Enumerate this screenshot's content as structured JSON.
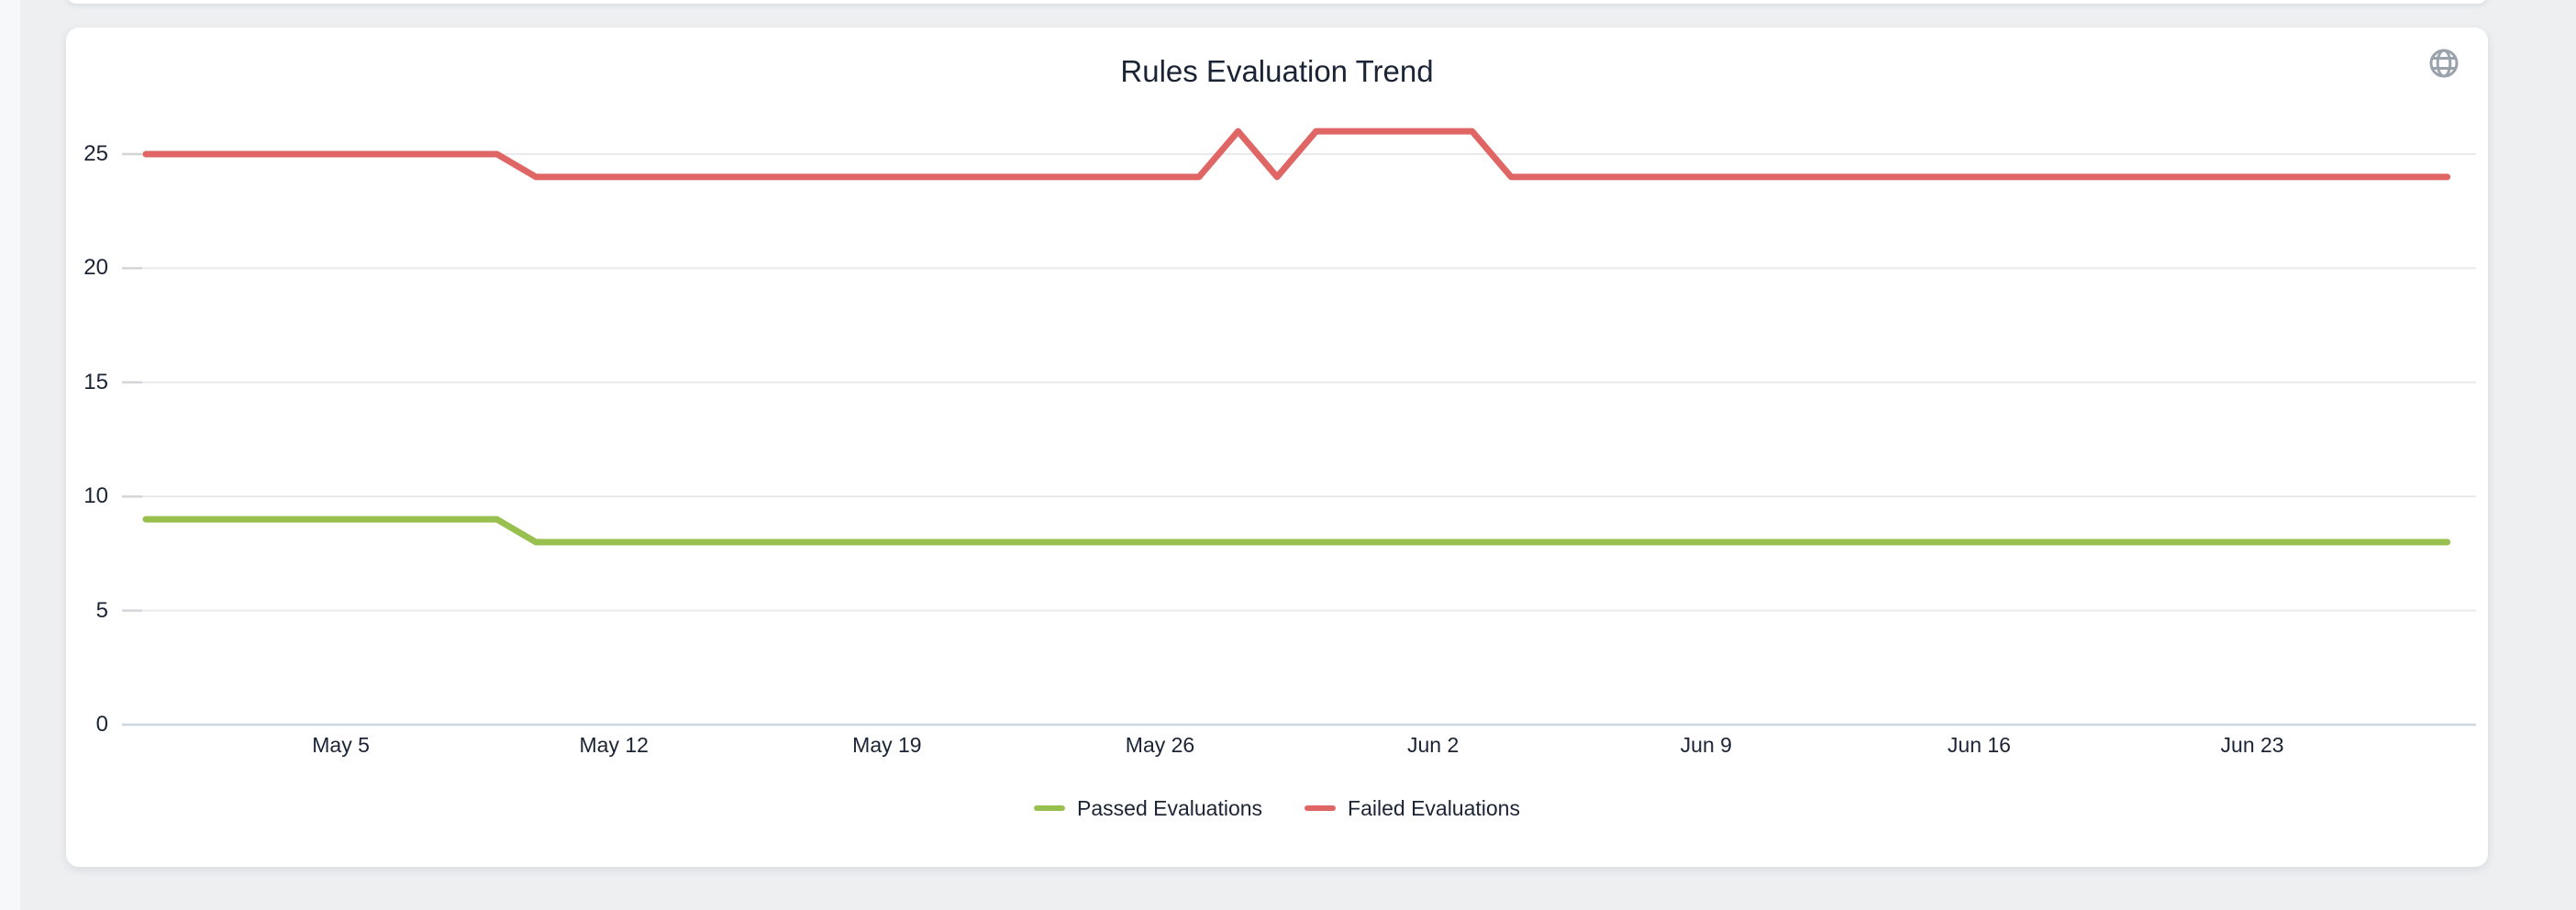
{
  "page": {
    "background_color": "#eeeff1",
    "left_strip_color": "#f6f8fa",
    "card_color": "#ffffff"
  },
  "card": {
    "title": "Rules Evaluation Trend",
    "toolbar": {
      "globe_icon": "globe-icon",
      "icon_color": "#9aa2ac"
    }
  },
  "chart_data": {
    "type": "line",
    "title": "Rules Evaluation Trend",
    "grid": "horizontal-only",
    "legend_position": "bottom",
    "ylim": [
      0,
      27
    ],
    "y_ticks": [
      0,
      5,
      10,
      15,
      20,
      25
    ],
    "x_tick_labels": [
      "May 5",
      "May 12",
      "May 19",
      "May 26",
      "Jun 2",
      "Jun 9",
      "Jun 16",
      "Jun 23"
    ],
    "x_tick_indices": [
      5,
      12,
      19,
      26,
      33,
      40,
      47,
      54
    ],
    "x": [
      "Apr 30",
      "May 1",
      "May 2",
      "May 3",
      "May 4",
      "May 5",
      "May 6",
      "May 7",
      "May 8",
      "May 9",
      "May 10",
      "May 11",
      "May 12",
      "May 13",
      "May 14",
      "May 15",
      "May 16",
      "May 17",
      "May 18",
      "May 19",
      "May 20",
      "May 21",
      "May 22",
      "May 23",
      "May 24",
      "May 25",
      "May 26",
      "May 27",
      "May 28",
      "May 29",
      "May 30",
      "May 31",
      "Jun 1",
      "Jun 2",
      "Jun 3",
      "Jun 4",
      "Jun 5",
      "Jun 6",
      "Jun 7",
      "Jun 8",
      "Jun 9",
      "Jun 10",
      "Jun 11",
      "Jun 12",
      "Jun 13",
      "Jun 14",
      "Jun 15",
      "Jun 16",
      "Jun 17",
      "Jun 18",
      "Jun 19",
      "Jun 20",
      "Jun 21",
      "Jun 22",
      "Jun 23",
      "Jun 24",
      "Jun 25",
      "Jun 26",
      "Jun 27",
      "Jun 28"
    ],
    "series": [
      {
        "name": "Passed Evaluations",
        "color": "#97c04f",
        "values": [
          9,
          9,
          9,
          9,
          9,
          9,
          9,
          9,
          9,
          9,
          8,
          8,
          8,
          8,
          8,
          8,
          8,
          8,
          8,
          8,
          8,
          8,
          8,
          8,
          8,
          8,
          8,
          8,
          8,
          8,
          8,
          8,
          8,
          8,
          8,
          8,
          8,
          8,
          8,
          8,
          8,
          8,
          8,
          8,
          8,
          8,
          8,
          8,
          8,
          8,
          8,
          8,
          8,
          8,
          8,
          8,
          8,
          8,
          8,
          8
        ]
      },
      {
        "name": "Failed Evaluations",
        "color": "#e06666",
        "values": [
          25,
          25,
          25,
          25,
          25,
          25,
          25,
          25,
          25,
          25,
          24,
          24,
          24,
          24,
          24,
          24,
          24,
          24,
          24,
          24,
          24,
          24,
          24,
          24,
          24,
          24,
          24,
          24,
          26,
          24,
          26,
          26,
          26,
          26,
          26,
          24,
          24,
          24,
          24,
          24,
          24,
          24,
          24,
          24,
          24,
          24,
          24,
          24,
          24,
          24,
          24,
          24,
          24,
          24,
          24,
          24,
          24,
          24,
          24,
          24
        ]
      }
    ],
    "axis_label_color": "#1b2435",
    "gridline_color": "#e9eaec",
    "tick_stub_color": "#d4d5d8",
    "baseline_color": "#cdd7e1"
  }
}
